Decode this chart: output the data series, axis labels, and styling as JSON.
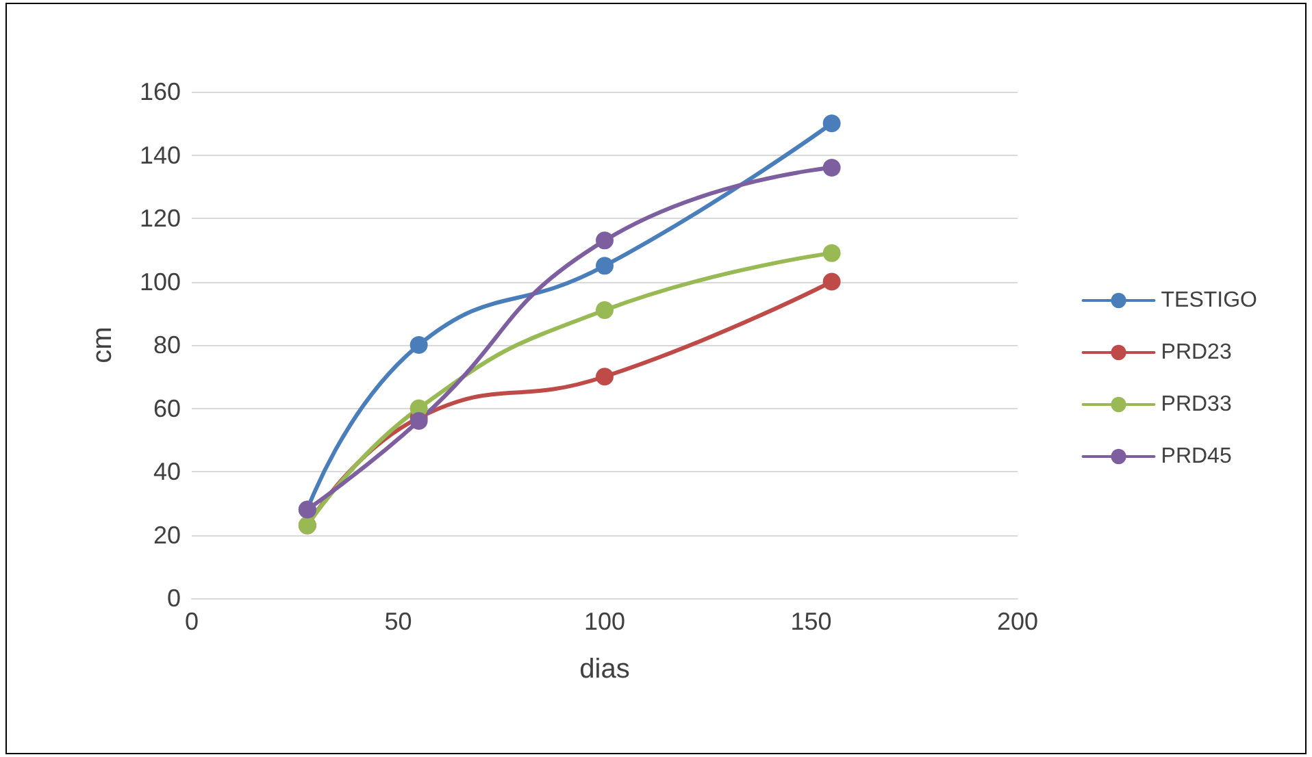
{
  "chart_data": {
    "type": "line",
    "xlabel": "dias",
    "ylabel": "cm",
    "x": [
      28,
      55,
      100,
      155
    ],
    "series": [
      {
        "name": "TESTIGO",
        "color": "#4a7ebb",
        "values": [
          28,
          80,
          105,
          150
        ]
      },
      {
        "name": "PRD23",
        "color": "#be4b48",
        "values": [
          23,
          57,
          70,
          100
        ]
      },
      {
        "name": "PRD33",
        "color": "#98b954",
        "values": [
          23,
          60,
          91,
          109
        ]
      },
      {
        "name": "PRD45",
        "color": "#7d5fa0",
        "values": [
          28,
          56,
          113,
          136
        ]
      }
    ],
    "xlim": [
      0,
      200
    ],
    "xticks": [
      0,
      50,
      100,
      150,
      200
    ],
    "ylim": [
      0,
      160
    ],
    "yticks": [
      0,
      20,
      40,
      60,
      80,
      100,
      120,
      140,
      160
    ],
    "grid": "y",
    "legend": "right",
    "marker": "circle",
    "line_style": "solid"
  }
}
